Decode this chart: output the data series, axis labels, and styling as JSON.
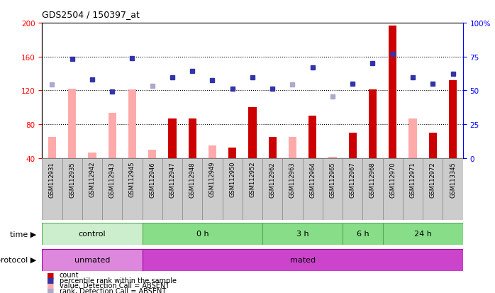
{
  "title": "GDS2504 / 150397_at",
  "samples": [
    "GSM112931",
    "GSM112935",
    "GSM112942",
    "GSM112943",
    "GSM112945",
    "GSM112946",
    "GSM112947",
    "GSM112948",
    "GSM112949",
    "GSM112950",
    "GSM112952",
    "GSM112962",
    "GSM112963",
    "GSM112964",
    "GSM112965",
    "GSM112967",
    "GSM112968",
    "GSM112970",
    "GSM112971",
    "GSM112972",
    "GSM113345"
  ],
  "count_values": [
    65,
    122,
    46,
    93,
    121,
    50,
    87,
    87,
    55,
    52,
    100,
    65,
    65,
    90,
    41,
    70,
    121,
    197,
    87,
    70,
    132
  ],
  "count_absent": [
    true,
    true,
    true,
    true,
    true,
    true,
    false,
    false,
    true,
    false,
    false,
    false,
    true,
    false,
    true,
    false,
    false,
    false,
    true,
    false,
    false
  ],
  "rank_values": [
    127,
    157,
    133,
    119,
    158,
    125,
    135,
    143,
    132,
    122,
    135,
    122,
    127,
    147,
    113,
    128,
    152,
    163,
    135,
    128,
    140
  ],
  "rank_absent": [
    true,
    false,
    false,
    false,
    false,
    true,
    false,
    false,
    false,
    false,
    false,
    false,
    true,
    false,
    true,
    false,
    false,
    false,
    false,
    false,
    false
  ],
  "time_groups": [
    {
      "label": "control",
      "start": 0,
      "end": 5
    },
    {
      "label": "0 h",
      "start": 5,
      "end": 11
    },
    {
      "label": "3 h",
      "start": 11,
      "end": 15
    },
    {
      "label": "6 h",
      "start": 15,
      "end": 17
    },
    {
      "label": "24 h",
      "start": 17,
      "end": 21
    }
  ],
  "protocol_groups": [
    {
      "label": "unmated",
      "start": 0,
      "end": 5
    },
    {
      "label": "mated",
      "start": 5,
      "end": 21
    }
  ],
  "ylim_left": [
    40,
    200
  ],
  "ylim_right": [
    0,
    100
  ],
  "yticks_left": [
    40,
    80,
    120,
    160,
    200
  ],
  "yticks_right": [
    0,
    25,
    50,
    75,
    100
  ],
  "bar_color_present": "#cc0000",
  "bar_color_absent": "#ffaaaa",
  "rank_color_present": "#3333aa",
  "rank_color_absent": "#aaaacc",
  "time_color_light": "#cceecc",
  "time_color_dark": "#88dd88",
  "prot_color_light": "#dd88dd",
  "prot_color_dark": "#cc44cc",
  "label_bg_color": "#cccccc",
  "label_border_color": "#888888"
}
